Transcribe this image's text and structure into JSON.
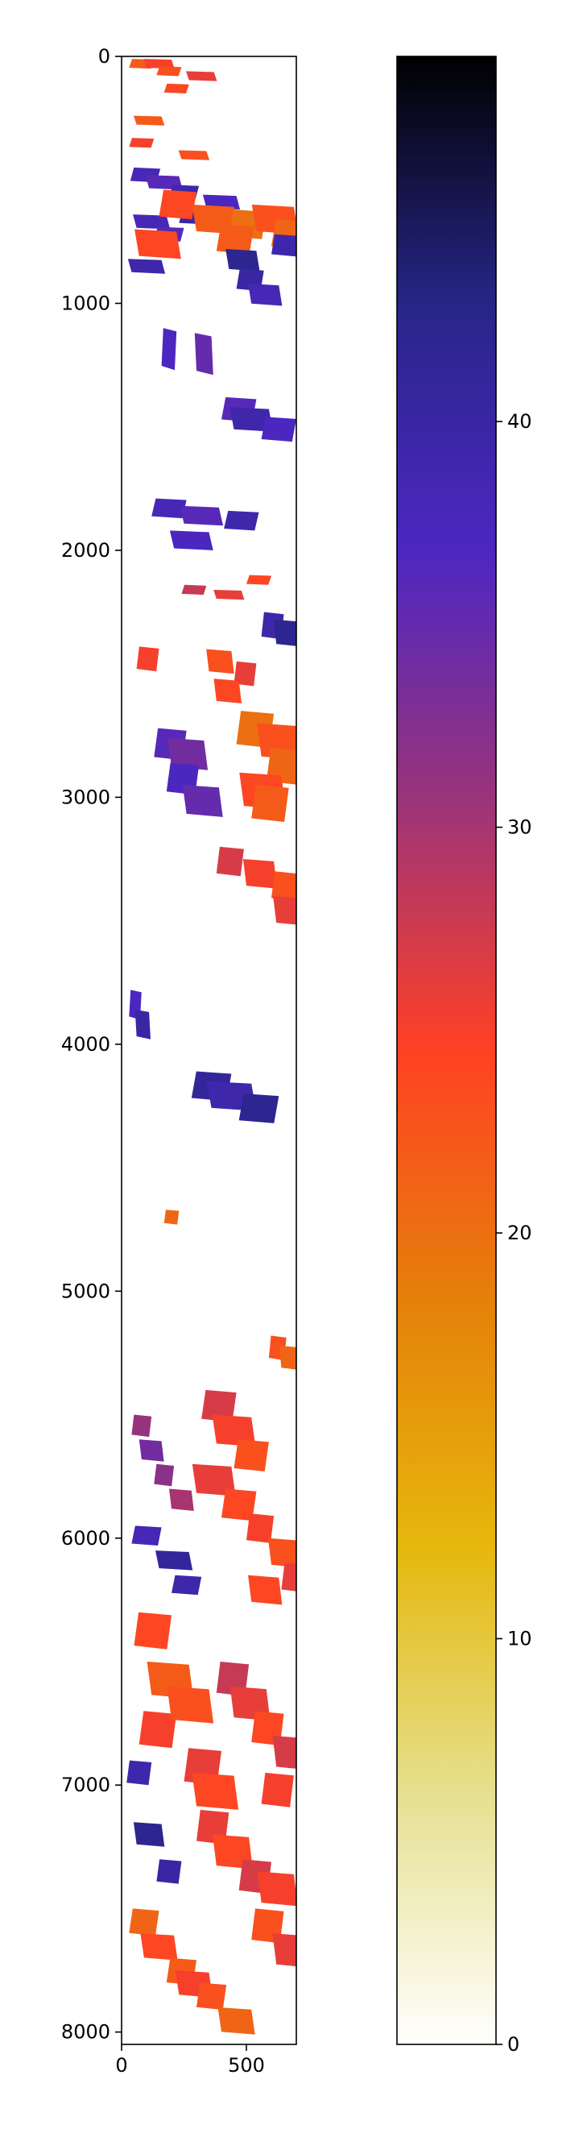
{
  "chart_data": [
    {
      "type": "heatmap",
      "title": "",
      "xlabel": "",
      "ylabel": "",
      "xlim": [
        0,
        700
      ],
      "ylim": [
        8050,
        0
      ],
      "xticks": [
        0,
        500
      ],
      "yticks": [
        0,
        1000,
        2000,
        3000,
        4000,
        5000,
        6000,
        7000,
        8000
      ],
      "grid": false,
      "colormap": "CMRmap_r",
      "value_range": [
        0,
        49
      ],
      "field_patches": [
        {
          "x": [
            30,
            100,
            140,
            270,
            170,
            60,
            30,
            240
          ],
          "y": [
            10,
            10,
            40,
            60,
            110,
            240,
            330,
            380
          ],
          "w": 100,
          "h": 40,
          "value": 24
        },
        {
          "x": [
            35,
            110,
            190,
            340,
            230,
            60,
            130,
            40
          ],
          "y": [
            450,
            480,
            520,
            560,
            620,
            640,
            690,
            820
          ],
          "w": 120,
          "h": 60,
          "value": 38
        },
        {
          "x": [
            150,
            300,
            430,
            540,
            600,
            70,
            380
          ],
          "y": [
            540,
            600,
            620,
            600,
            660,
            700,
            680
          ],
          "w": 150,
          "h": 120,
          "value": 22
        },
        {
          "x": [
            600,
            430,
            460,
            520
          ],
          "y": [
            720,
            780,
            860,
            920
          ],
          "w": 110,
          "h": 90,
          "value": 40
        },
        {
          "x": [
            160,
            300
          ],
          "y": [
            1100,
            1120
          ],
          "w": 60,
          "h": 170,
          "value": 36
        },
        {
          "x": [
            400,
            450,
            560
          ],
          "y": [
            1380,
            1420,
            1460
          ],
          "w": 140,
          "h": 100,
          "value": 38
        },
        {
          "x": [
            120,
            250,
            410,
            210
          ],
          "y": [
            1790,
            1820,
            1840,
            1920
          ],
          "w": 140,
          "h": 80,
          "value": 38
        },
        {
          "x": [
            240,
            380,
            500
          ],
          "y": [
            2140,
            2160,
            2100
          ],
          "w": 100,
          "h": 40,
          "value": 26
        },
        {
          "x": [
            560,
            620
          ],
          "y": [
            2250,
            2280
          ],
          "w": 90,
          "h": 110,
          "value": 40
        },
        {
          "x": [
            60,
            350,
            450,
            380
          ],
          "y": [
            2390,
            2400,
            2450,
            2520
          ],
          "w": 90,
          "h": 100,
          "value": 24
        },
        {
          "x": [
            460,
            560,
            580,
            490,
            520
          ],
          "y": [
            2650,
            2700,
            2800,
            2900,
            2950
          ],
          "w": 150,
          "h": 150,
          "value": 22
        },
        {
          "x": [
            130,
            200,
            180,
            260
          ],
          "y": [
            2720,
            2760,
            2860,
            2950
          ],
          "w": 130,
          "h": 130,
          "value": 36
        },
        {
          "x": [
            380,
            500,
            600,
            620
          ],
          "y": [
            3200,
            3250,
            3300,
            3400
          ],
          "w": 110,
          "h": 120,
          "value": 25
        },
        {
          "x": [
            30,
            60
          ],
          "y": [
            3780,
            3860
          ],
          "w": 50,
          "h": 120,
          "value": 38
        },
        {
          "x": [
            280,
            360,
            470
          ],
          "y": [
            4110,
            4150,
            4200
          ],
          "w": 160,
          "h": 120,
          "value": 40
        },
        {
          "x": [
            170
          ],
          "y": [
            4670
          ],
          "w": 60,
          "h": 60,
          "value": 23
        },
        {
          "x": [
            590,
            640
          ],
          "y": [
            5180,
            5220
          ],
          "w": 70,
          "h": 100,
          "value": 23
        },
        {
          "x": [
            320,
            380,
            450,
            300,
            400
          ],
          "y": [
            5400,
            5500,
            5600,
            5700,
            5800
          ],
          "w": 140,
          "h": 130,
          "value": 25
        },
        {
          "x": [
            40,
            80,
            130,
            200
          ],
          "y": [
            5500,
            5600,
            5700,
            5800
          ],
          "w": 80,
          "h": 90,
          "value": 32
        },
        {
          "x": [
            500,
            600,
            640,
            520
          ],
          "y": [
            5900,
            6000,
            6100,
            6150
          ],
          "w": 110,
          "h": 120,
          "value": 24
        },
        {
          "x": [
            40,
            150,
            200
          ],
          "y": [
            5950,
            6050,
            6150
          ],
          "w": 120,
          "h": 80,
          "value": 40
        },
        {
          "x": [
            50,
            120,
            70,
            200,
            250,
            300
          ],
          "y": [
            6300,
            6500,
            6700,
            6600,
            6850,
            6950
          ],
          "w": 150,
          "h": 150,
          "value": 24
        },
        {
          "x": [
            380,
            450,
            520,
            620,
            560
          ],
          "y": [
            6500,
            6600,
            6700,
            6800,
            6950
          ],
          "w": 130,
          "h": 140,
          "value": 26
        },
        {
          "x": [
            20,
            60,
            140
          ],
          "y": [
            6900,
            7150,
            7300
          ],
          "w": 100,
          "h": 100,
          "value": 40
        },
        {
          "x": [
            300,
            380,
            470,
            560,
            520,
            620
          ],
          "y": [
            7100,
            7200,
            7300,
            7350,
            7500,
            7600
          ],
          "w": 130,
          "h": 140,
          "value": 25
        },
        {
          "x": [
            30,
            90,
            180,
            230,
            300,
            400
          ],
          "y": [
            7500,
            7600,
            7700,
            7750,
            7800,
            7900
          ],
          "w": 120,
          "h": 110,
          "value": 23
        }
      ]
    },
    {
      "type": "colorbar",
      "cmap_stops": [
        {
          "v": 0,
          "color": "#fffffe"
        },
        {
          "v": 6.1,
          "color": "#e6e091"
        },
        {
          "v": 12.2,
          "color": "#e6b80d"
        },
        {
          "v": 18.4,
          "color": "#e5800a"
        },
        {
          "v": 24.5,
          "color": "#ff4124"
        },
        {
          "v": 30.6,
          "color": "#9c3479"
        },
        {
          "v": 36.8,
          "color": "#4d27c1"
        },
        {
          "v": 42.9,
          "color": "#272688"
        },
        {
          "v": 49,
          "color": "#000000"
        }
      ],
      "range": [
        0,
        49
      ],
      "ticks": [
        0,
        10,
        20,
        30,
        40
      ]
    }
  ]
}
